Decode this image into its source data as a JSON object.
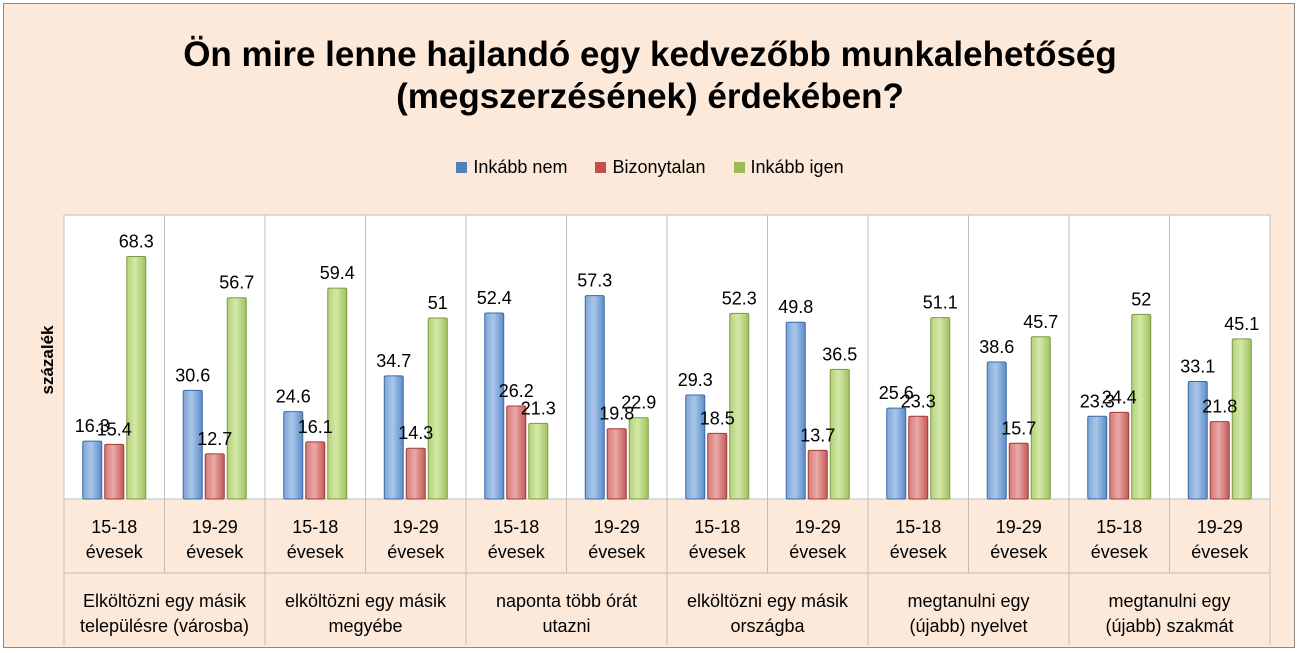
{
  "chart_data": {
    "type": "bar",
    "title": [
      "Ön mire lenne hajlandó egy kedvezőbb munkalehetőség",
      "(megszerzésének) érdekében?"
    ],
    "ylabel": "százalék",
    "ylim": [
      0,
      80
    ],
    "grid": false,
    "legend_position": "top",
    "groups": [
      {
        "label": [
          "Elköltözni egy másik",
          "településre (városba)"
        ]
      },
      {
        "label": [
          "elköltözni egy másik",
          "megyébe"
        ]
      },
      {
        "label": [
          "naponta több órát",
          "utazni"
        ]
      },
      {
        "label": [
          "elköltözni egy másik",
          "országba"
        ]
      },
      {
        "label": [
          "megtanulni egy",
          "(újabb) nyelvet"
        ]
      },
      {
        "label": [
          "megtanulni egy",
          "(újabb) szakmát"
        ]
      }
    ],
    "subcategories": [
      [
        "15-18",
        "évesek"
      ],
      [
        "19-29",
        "évesek"
      ]
    ],
    "series": [
      {
        "name": "Inkább nem",
        "color": "#4f81bd",
        "values": [
          16.3,
          30.6,
          24.6,
          34.7,
          52.4,
          57.3,
          29.3,
          49.8,
          25.6,
          38.6,
          23.3,
          33.1
        ]
      },
      {
        "name": "Bizonytalan",
        "color": "#c0504d",
        "values": [
          15.4,
          12.7,
          16.1,
          14.3,
          26.2,
          19.8,
          18.5,
          13.7,
          23.3,
          15.7,
          24.4,
          21.8
        ]
      },
      {
        "name": "Inkább igen",
        "color": "#9bbb59",
        "values": [
          68.3,
          56.7,
          59.4,
          51,
          21.3,
          22.9,
          52.3,
          36.5,
          51.1,
          45.7,
          52,
          45.1
        ]
      }
    ]
  }
}
